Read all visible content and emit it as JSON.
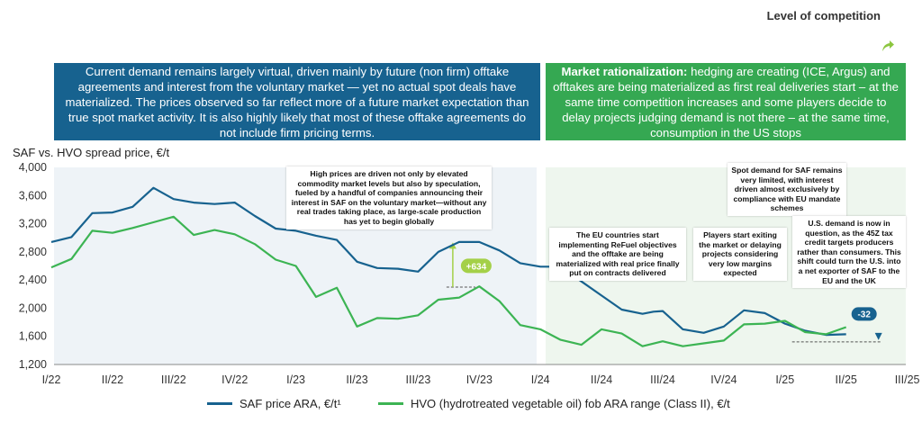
{
  "header": {
    "title": "Level of competition"
  },
  "banners": {
    "left": "Current demand remains largely virtual, driven mainly by future (non firm) offtake agreements and interest from the voluntary market — yet no actual spot deals have materialized. The prices observed so far reflect more of a future market expectation than true spot market activity. It is also highly likely that most of these offtake agreements do not include firm pricing terms.",
    "right_bold": "Market rationalization:",
    "right_rest": " hedging are creating (ICE, Argus) and offtakes are being materialized as first real deliveries start – at the same time competition increases and some players decide to delay projects judging demand is not there – at the same time, consumption in the US stops"
  },
  "annotations": {
    "speculation": "High prices are driven not only by elevated commodity market levels but also by speculation, fueled by a handful of companies announcing their interest in SAF on the voluntary market—without any real trades taking place, as large-scale production has yet to begin globally",
    "eu_refuel": "The EU countries start implementing ReFuel objectives and the offtake are being materialized with real price finally put on contracts delivered",
    "players_exit": "Players start exiting the market or delaying projects considering very low margins expected",
    "spot_demand": "Spot demand for SAF remains very limited, with interest driven almost exclusively by compliance with EU mandate schemes",
    "us_demand": "U.S. demand is now in question, as the 45Z tax credit targets producers rather than consumers. This shift could turn the U.S. into a net exporter of SAF to the EU and the UK"
  },
  "chart_data": {
    "type": "line",
    "title": "SAF vs. HVO spread price, €/t",
    "xlabel": "",
    "ylabel": "",
    "ylim": [
      1200,
      4000
    ],
    "yticks": [
      "4,000",
      "3,600",
      "3,200",
      "2,800",
      "2,400",
      "2,000",
      "1,600",
      "1,200"
    ],
    "xtick_labels": [
      "I/22",
      "II/22",
      "III/22",
      "IV/22",
      "I/23",
      "II/23",
      "III/23",
      "IV/23",
      "I/24",
      "II/24",
      "III/24",
      "IV/24",
      "I/25",
      "II/25",
      "III/25"
    ],
    "grid": false,
    "legend_position": "bottom",
    "series": [
      {
        "name": "SAF price ARA, €/t¹",
        "color": "#17628f",
        "points": [
          [
            0.0,
            2940
          ],
          [
            0.33,
            3010
          ],
          [
            0.67,
            3350
          ],
          [
            1.0,
            3360
          ],
          [
            1.33,
            3440
          ],
          [
            1.67,
            3710
          ],
          [
            2.0,
            3550
          ],
          [
            2.33,
            3500
          ],
          [
            2.67,
            3480
          ],
          [
            3.0,
            3500
          ],
          [
            3.33,
            3310
          ],
          [
            3.67,
            3130
          ],
          [
            4.0,
            3100
          ],
          [
            4.33,
            3030
          ],
          [
            4.67,
            2970
          ],
          [
            5.0,
            2660
          ],
          [
            5.33,
            2570
          ],
          [
            5.67,
            2560
          ],
          [
            6.0,
            2520
          ],
          [
            6.33,
            2800
          ],
          [
            6.67,
            2940
          ],
          [
            7.0,
            2940
          ],
          [
            7.33,
            2820
          ],
          [
            7.67,
            2640
          ],
          [
            8.0,
            2590
          ],
          [
            8.33,
            2590
          ],
          [
            8.67,
            2380
          ],
          [
            9.0,
            2180
          ],
          [
            9.33,
            1980
          ],
          [
            9.67,
            1920
          ],
          [
            9.85,
            1950
          ],
          [
            10.0,
            1960
          ],
          [
            10.33,
            1700
          ],
          [
            10.67,
            1650
          ],
          [
            11.0,
            1740
          ],
          [
            11.33,
            1970
          ],
          [
            11.67,
            1930
          ],
          [
            12.0,
            1780
          ],
          [
            12.33,
            1680
          ],
          [
            12.67,
            1620
          ],
          [
            13.0,
            1630
          ]
        ]
      },
      {
        "name": "HVO (hydrotreated vegetable oil) fob ARA range (Class II), €/t",
        "color": "#3cb453",
        "points": [
          [
            0.0,
            2580
          ],
          [
            0.33,
            2700
          ],
          [
            0.67,
            3100
          ],
          [
            1.0,
            3070
          ],
          [
            1.33,
            3140
          ],
          [
            1.67,
            3220
          ],
          [
            2.0,
            3300
          ],
          [
            2.33,
            3040
          ],
          [
            2.67,
            3110
          ],
          [
            3.0,
            3050
          ],
          [
            3.33,
            2910
          ],
          [
            3.67,
            2690
          ],
          [
            4.0,
            2600
          ],
          [
            4.33,
            2160
          ],
          [
            4.67,
            2290
          ],
          [
            5.0,
            1740
          ],
          [
            5.33,
            1860
          ],
          [
            5.67,
            1850
          ],
          [
            6.0,
            1900
          ],
          [
            6.33,
            2120
          ],
          [
            6.67,
            2150
          ],
          [
            7.0,
            2310
          ],
          [
            7.33,
            2100
          ],
          [
            7.67,
            1760
          ],
          [
            8.0,
            1700
          ],
          [
            8.33,
            1550
          ],
          [
            8.67,
            1480
          ],
          [
            9.0,
            1700
          ],
          [
            9.33,
            1640
          ],
          [
            9.67,
            1460
          ],
          [
            10.0,
            1530
          ],
          [
            10.33,
            1460
          ],
          [
            10.67,
            1500
          ],
          [
            11.0,
            1540
          ],
          [
            11.33,
            1770
          ],
          [
            11.67,
            1780
          ],
          [
            12.0,
            1820
          ],
          [
            12.33,
            1660
          ],
          [
            12.67,
            1630
          ],
          [
            13.0,
            1730
          ]
        ]
      }
    ],
    "callouts": [
      {
        "label": "+634",
        "x": 6.67,
        "from": 2300,
        "to": 2934,
        "color": "#a4d048"
      },
      {
        "label": "-32",
        "x": 13.0,
        "from": 1630,
        "to": 1598,
        "color": "#17628f"
      }
    ]
  }
}
